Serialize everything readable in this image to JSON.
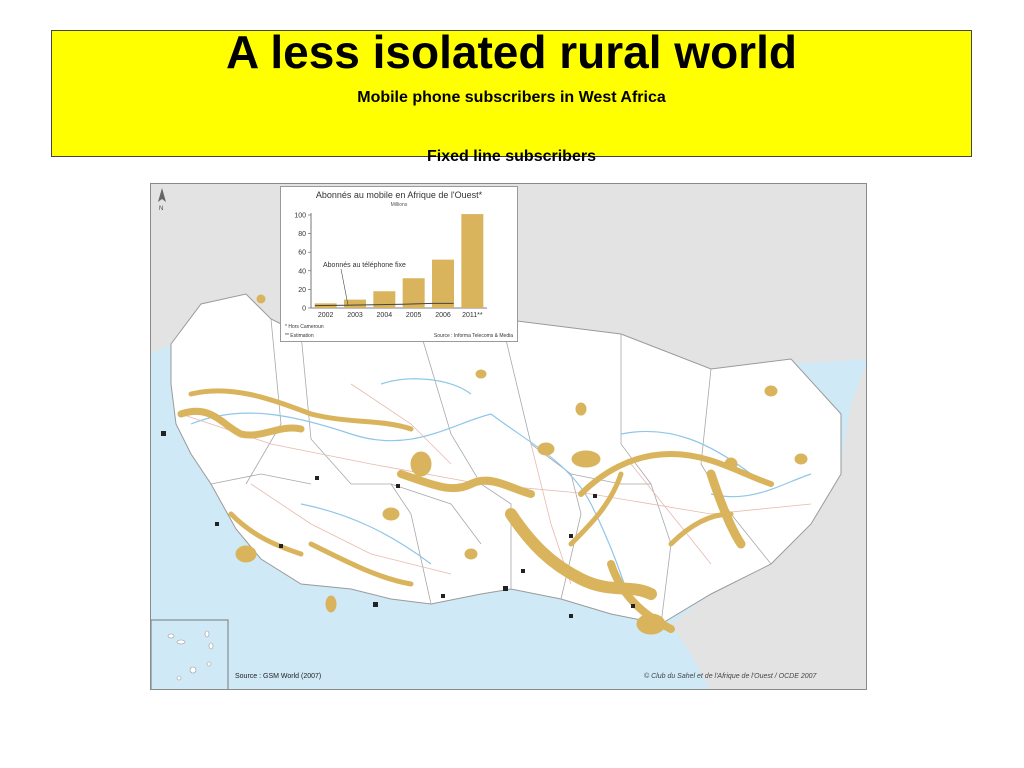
{
  "slide": {
    "title": "A less isolated rural world",
    "subtitle_1": "Mobile phone subscribers in West Africa",
    "subtitle_2": "Fixed line subscribers"
  },
  "map": {
    "source": "Source :  GSM World (2007)",
    "credit": "© Club du Sahel et de l'Afrique de l'Ouest / OCDE 2007",
    "north_label": "N",
    "colors": {
      "sea": "#cfe9f6",
      "land": "#ffffff",
      "outside_land": "#e3e3e3",
      "coverage": "#d9b45c",
      "rivers": "#8fc7e8",
      "roads": "#e6b9b0",
      "borders": "#9a9a9a"
    }
  },
  "chart_data": {
    "type": "bar",
    "title": "Abonnés au mobile en Afrique de l'Ouest*",
    "unit": "Millions",
    "categories": [
      "2002",
      "2003",
      "2004",
      "2005",
      "2006",
      "2011**"
    ],
    "series": [
      {
        "name": "",
        "values": [
          5,
          9,
          18,
          32,
          52,
          101
        ]
      },
      {
        "name": "Abonnés au téléphone fixe",
        "values": [
          2.5,
          3,
          3.5,
          4,
          5,
          7
        ]
      }
    ],
    "yticks": [
      "0",
      "20",
      "40",
      "60",
      "80",
      "100"
    ],
    "ylim": [
      0,
      100
    ],
    "notes": [
      "* Hors Cameroun",
      "** Estimation"
    ],
    "source": "Source : Informa Telecoms & Media"
  }
}
